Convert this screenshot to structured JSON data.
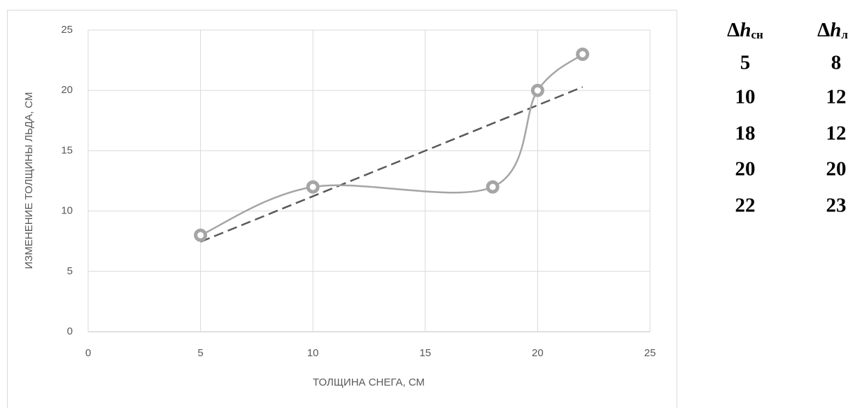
{
  "chart_data": {
    "type": "scatter",
    "x_label": "ТОЛЩИНА СНЕГА, СМ",
    "y_label": "ИЗМЕНЕНИЕ ТОЛЩИНЫ ЛЬДА, СМ",
    "x": [
      5,
      10,
      18,
      20,
      22
    ],
    "values": [
      8,
      12,
      12,
      20,
      23
    ],
    "color": "#a5a5a5",
    "smooth": true,
    "trendline": "linear",
    "trendline_color": "#595959",
    "xlim": [
      0,
      25
    ],
    "xticks": [
      0,
      5,
      10,
      15,
      20,
      25
    ],
    "ylim": [
      0,
      25
    ],
    "yticks": [
      0,
      5,
      10,
      15,
      20,
      25
    ],
    "grid": true
  },
  "table": {
    "header": [
      {
        "symbol": "Δ",
        "var": "h",
        "sub": "сн"
      },
      {
        "symbol": "Δ",
        "var": "h",
        "sub": "л"
      }
    ],
    "rows": [
      [
        "5",
        "8"
      ],
      [
        "10",
        "12"
      ],
      [
        "18",
        "12"
      ],
      [
        "20",
        "20"
      ],
      [
        "22",
        "23"
      ]
    ]
  }
}
